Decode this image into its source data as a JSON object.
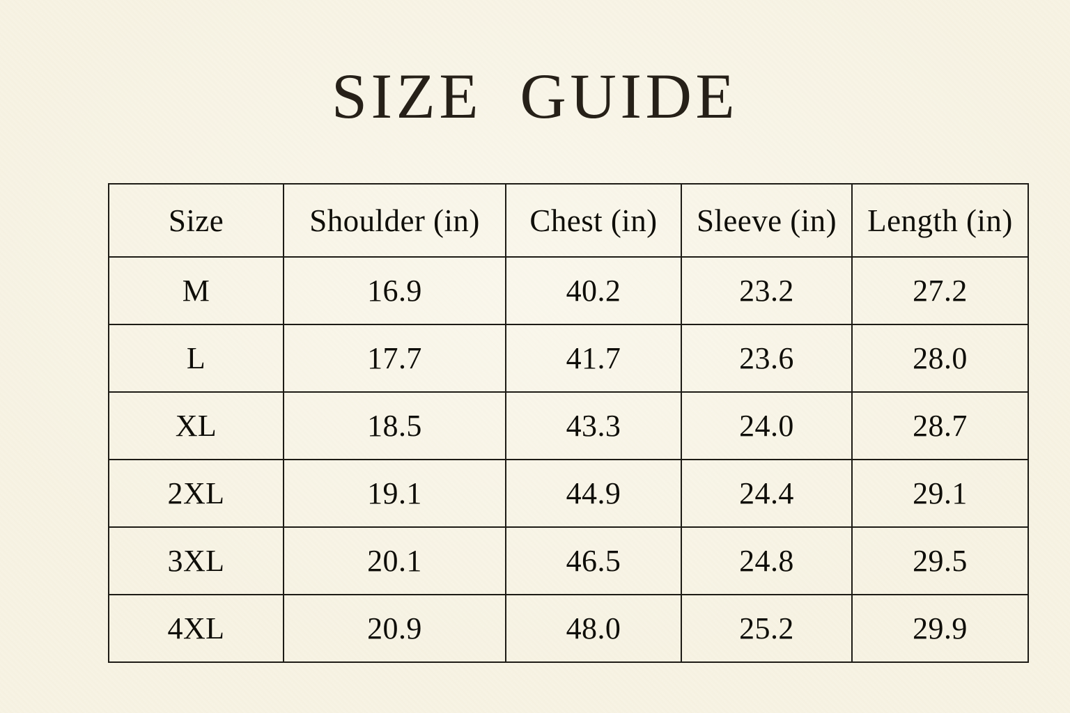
{
  "title": "SIZE GUIDE",
  "colors": {
    "background": "#f7f3e4",
    "text": "#0f0e09",
    "title": "#262018",
    "border": "#1d1b15"
  },
  "table": {
    "headers": [
      "Size",
      "Shoulder (in)",
      "Chest (in)",
      "Sleeve (in)",
      "Length (in)"
    ],
    "rows": [
      [
        "M",
        "16.9",
        "40.2",
        "23.2",
        "27.2"
      ],
      [
        "L",
        "17.7",
        "41.7",
        "23.6",
        "28.0"
      ],
      [
        "XL",
        "18.5",
        "43.3",
        "24.0",
        "28.7"
      ],
      [
        "2XL",
        "19.1",
        "44.9",
        "24.4",
        "29.1"
      ],
      [
        "3XL",
        "20.1",
        "46.5",
        "24.8",
        "29.5"
      ],
      [
        "4XL",
        "20.9",
        "48.0",
        "25.2",
        "29.9"
      ]
    ]
  },
  "chart_data": {
    "type": "table",
    "title": "SIZE GUIDE",
    "columns": [
      "Size",
      "Shoulder (in)",
      "Chest (in)",
      "Sleeve (in)",
      "Length (in)"
    ],
    "rows": [
      {
        "size": "M",
        "shoulder_in": 16.9,
        "chest_in": 40.2,
        "sleeve_in": 23.2,
        "length_in": 27.2
      },
      {
        "size": "L",
        "shoulder_in": 17.7,
        "chest_in": 41.7,
        "sleeve_in": 23.6,
        "length_in": 28.0
      },
      {
        "size": "XL",
        "shoulder_in": 18.5,
        "chest_in": 43.3,
        "sleeve_in": 24.0,
        "length_in": 28.7
      },
      {
        "size": "2XL",
        "shoulder_in": 19.1,
        "chest_in": 44.9,
        "sleeve_in": 24.4,
        "length_in": 29.1
      },
      {
        "size": "3XL",
        "shoulder_in": 20.1,
        "chest_in": 46.5,
        "sleeve_in": 24.8,
        "length_in": 29.5
      },
      {
        "size": "4XL",
        "shoulder_in": 20.9,
        "chest_in": 48.0,
        "sleeve_in": 25.2,
        "length_in": 29.9
      }
    ]
  }
}
